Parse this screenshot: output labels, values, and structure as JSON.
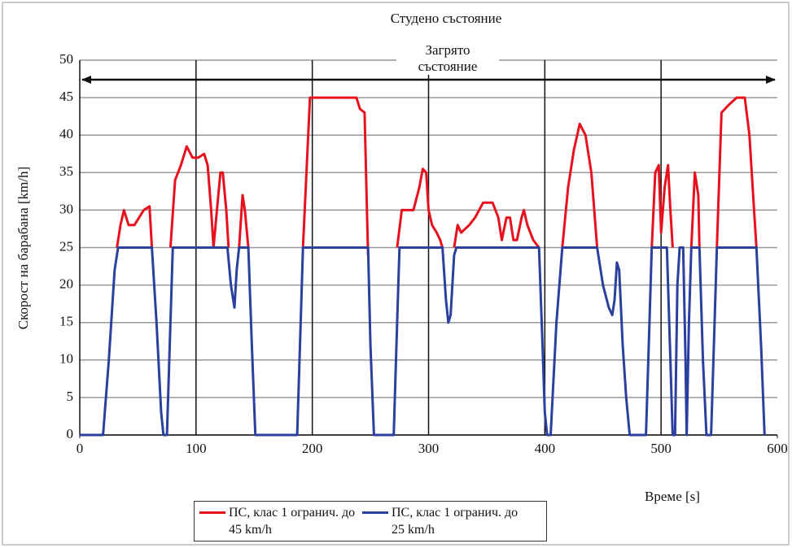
{
  "chart_data": {
    "type": "line",
    "title": "Студено състояние",
    "annotation": "Загрято състояние",
    "x_label": "Време [s]",
    "y_label": "Скорост на барабана [km/h]",
    "xlim": [
      0,
      600
    ],
    "xticks": [
      0,
      100,
      200,
      300,
      400,
      500,
      600
    ],
    "ylim": [
      0,
      50
    ],
    "yticks": [
      0,
      5,
      10,
      15,
      20,
      25,
      30,
      35,
      40,
      45,
      50
    ],
    "grid": true,
    "legend": "bottom",
    "series": [
      {
        "name": "ПС, клас 1 огранич. до 45 km/h",
        "color": "#e8101c",
        "x": [
          32,
          35,
          38,
          42,
          47,
          55,
          60,
          62,
          70,
          78,
          82,
          87,
          92,
          97,
          102,
          107,
          110,
          113,
          115,
          118,
          121,
          123,
          126,
          128,
          132,
          137,
          140,
          142,
          145,
          170,
          192,
          195,
          198,
          238,
          241,
          245,
          247,
          248,
          260,
          273,
          277,
          282,
          287,
          292,
          295,
          298,
          300,
          303,
          307,
          310,
          312,
          317,
          322,
          325,
          328,
          335,
          340,
          347,
          355,
          360,
          363,
          367,
          370,
          373,
          376,
          380,
          382,
          385,
          390,
          395,
          405,
          415,
          420,
          425,
          430,
          435,
          440,
          445,
          470,
          492,
          495,
          498,
          500,
          503,
          506,
          508,
          510,
          518,
          526,
          529,
          532,
          533,
          540,
          548,
          552,
          558,
          565,
          572,
          576,
          580,
          582
        ],
        "values": [
          25,
          28,
          30,
          28,
          28,
          30,
          30.5,
          25,
          null,
          25,
          34,
          36,
          38.5,
          37,
          37,
          37.5,
          36,
          30,
          25,
          30,
          35,
          35,
          30,
          25,
          null,
          25,
          32,
          30,
          25,
          null,
          25,
          35,
          45,
          45,
          43.5,
          43,
          30,
          24,
          null,
          25,
          30,
          30,
          30,
          33,
          35.5,
          35,
          30,
          28,
          27,
          26,
          25,
          null,
          25,
          28,
          27,
          28,
          29,
          31,
          31,
          29,
          26,
          29,
          29,
          26,
          26,
          29,
          30,
          28,
          26,
          25,
          null,
          25,
          33,
          38,
          41.5,
          40,
          35,
          25,
          null,
          25,
          35,
          36,
          27,
          33,
          36,
          30,
          25,
          null,
          25,
          35,
          32,
          25,
          null,
          25,
          43,
          44,
          45,
          45,
          40,
          30,
          25
        ]
      },
      {
        "name": "ПС, клас 1 огранич. до 25 km/h",
        "color": "#2a3f9e",
        "x": [
          0,
          20,
          25,
          30,
          33,
          62,
          66,
          70,
          72,
          75,
          78,
          80,
          127,
          130,
          133,
          135,
          137,
          145,
          148,
          151,
          187,
          190,
          192,
          248,
          250,
          253,
          270,
          273,
          275,
          312,
          315,
          317,
          319,
          322,
          324,
          395,
          398,
          400,
          402,
          405,
          410,
          415,
          445,
          450,
          455,
          458,
          460,
          462,
          464,
          467,
          470,
          473,
          487,
          490,
          492,
          505,
          508,
          510,
          512,
          514,
          516,
          519,
          521,
          522,
          524,
          526,
          533,
          536,
          539,
          543,
          546,
          548,
          582,
          586,
          589
        ],
        "values": [
          0,
          0,
          10,
          22,
          25,
          25,
          15,
          3,
          0,
          0,
          15,
          25,
          25,
          20,
          17,
          22,
          25,
          25,
          12,
          0,
          0,
          15,
          25,
          25,
          12,
          0,
          0,
          15,
          25,
          25,
          18,
          15,
          16,
          24,
          25,
          25,
          12,
          3,
          0,
          0,
          15,
          25,
          25,
          20,
          17,
          16,
          18,
          23,
          22,
          12,
          5,
          0,
          0,
          15,
          25,
          25,
          10,
          0,
          0,
          20,
          25,
          25,
          10,
          0,
          15,
          25,
          25,
          10,
          0,
          0,
          15,
          25,
          25,
          12,
          0
        ]
      }
    ]
  }
}
